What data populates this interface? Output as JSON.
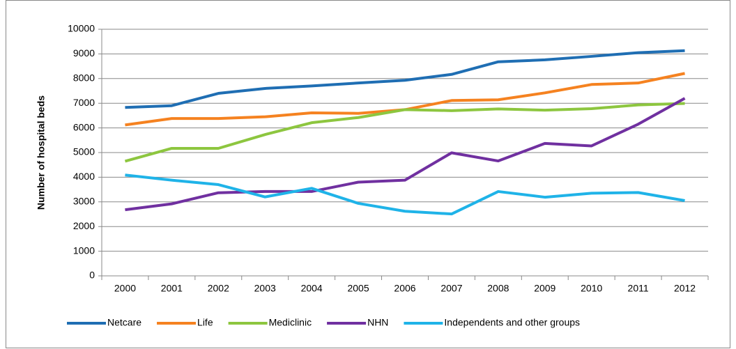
{
  "chart_data": {
    "type": "line",
    "y_label": "Number of hospital beds",
    "categories": [
      "2000",
      "2001",
      "2002",
      "2003",
      "2004",
      "2005",
      "2006",
      "2007",
      "2008",
      "2009",
      "2010",
      "2011",
      "2012"
    ],
    "series": [
      {
        "name": "Netcare",
        "color": "#1f6eb3",
        "values": [
          6830,
          6900,
          7400,
          7600,
          7700,
          7820,
          7930,
          8170,
          8680,
          8760,
          8900,
          9050,
          9130
        ]
      },
      {
        "name": "Life",
        "color": "#f58220",
        "values": [
          6120,
          6380,
          6380,
          6450,
          6610,
          6590,
          6740,
          7110,
          7140,
          7420,
          7760,
          7820,
          8210
        ]
      },
      {
        "name": "Mediclinic",
        "color": "#8dc63f",
        "values": [
          4650,
          5170,
          5170,
          5730,
          6210,
          6420,
          6740,
          6700,
          6770,
          6720,
          6780,
          6930,
          6990
        ]
      },
      {
        "name": "NHN",
        "color": "#7030a0",
        "values": [
          2680,
          2920,
          3370,
          3420,
          3420,
          3800,
          3880,
          4990,
          4660,
          5370,
          5270,
          6150,
          7200
        ]
      },
      {
        "name": "Independents and other groups",
        "color": "#1fb3e8",
        "values": [
          4090,
          3880,
          3700,
          3200,
          3550,
          2940,
          2620,
          2510,
          3420,
          3190,
          3350,
          3380,
          3050
        ]
      }
    ],
    "ylim": [
      0,
      10000
    ],
    "yticks": [
      0,
      1000,
      2000,
      3000,
      4000,
      5000,
      6000,
      7000,
      8000,
      9000,
      10000
    ],
    "grid": true,
    "legend": "bottom"
  }
}
